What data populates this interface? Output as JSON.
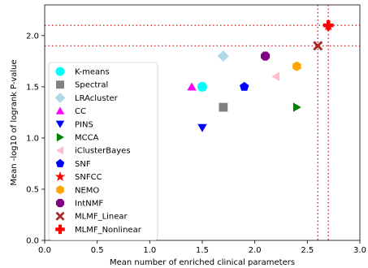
{
  "chart_data": {
    "type": "scatter",
    "xlabel": "Mean number of enriched clinical parameters",
    "ylabel": "Mean -log10 of logrank P-value",
    "xlim": [
      0,
      3.0
    ],
    "ylim": [
      0,
      2.3
    ],
    "xticks": [
      "0.0",
      "0.5",
      "1.0",
      "1.5",
      "2.0",
      "2.5",
      "3.0"
    ],
    "yticks": [
      "0.0",
      "0.5",
      "1.0",
      "1.5",
      "2.0"
    ],
    "grid": false,
    "legend_position": "left",
    "reference_lines": {
      "horizontal": [
        1.9,
        2.1
      ],
      "vertical": [
        2.6,
        2.7
      ],
      "color": "#d62728"
    },
    "series": [
      {
        "name": "K-means",
        "marker": "circle",
        "color": "#00ffff",
        "x": 1.5,
        "y": 1.5
      },
      {
        "name": "Spectral",
        "marker": "square",
        "color": "#808080",
        "x": 1.7,
        "y": 1.3
      },
      {
        "name": "LRAcluster",
        "marker": "diamond",
        "color": "#add8e6",
        "x": 1.7,
        "y": 1.8
      },
      {
        "name": "CC",
        "marker": "triangle-up",
        "color": "#ff00ff",
        "x": 1.4,
        "y": 1.5
      },
      {
        "name": "PINS",
        "marker": "triangle-down",
        "color": "#0000ff",
        "x": 1.5,
        "y": 1.1
      },
      {
        "name": "MCCA",
        "marker": "triangle-right",
        "color": "#008000",
        "x": 2.4,
        "y": 1.3
      },
      {
        "name": "iClusterBayes",
        "marker": "triangle-left",
        "color": "#ffc0cb",
        "x": 2.2,
        "y": 1.6
      },
      {
        "name": "SNF",
        "marker": "pentagon",
        "color": "#0000ff",
        "x": 1.9,
        "y": 1.5
      },
      {
        "name": "SNFCC",
        "marker": "star",
        "color": "#ff0000",
        "x": 2.7,
        "y": 2.1
      },
      {
        "name": "NEMO",
        "marker": "hexagon",
        "color": "#ffa500",
        "x": 2.4,
        "y": 1.7
      },
      {
        "name": "IntNMF",
        "marker": "octagon",
        "color": "#800080",
        "x": 2.1,
        "y": 1.8
      },
      {
        "name": "MLMF_Linear",
        "marker": "x-filled",
        "color": "#a52a2a",
        "x": 2.6,
        "y": 1.9
      },
      {
        "name": "MLMF_Nonlinear",
        "marker": "plus-filled",
        "color": "#ff0000",
        "x": 2.7,
        "y": 2.1
      }
    ]
  }
}
